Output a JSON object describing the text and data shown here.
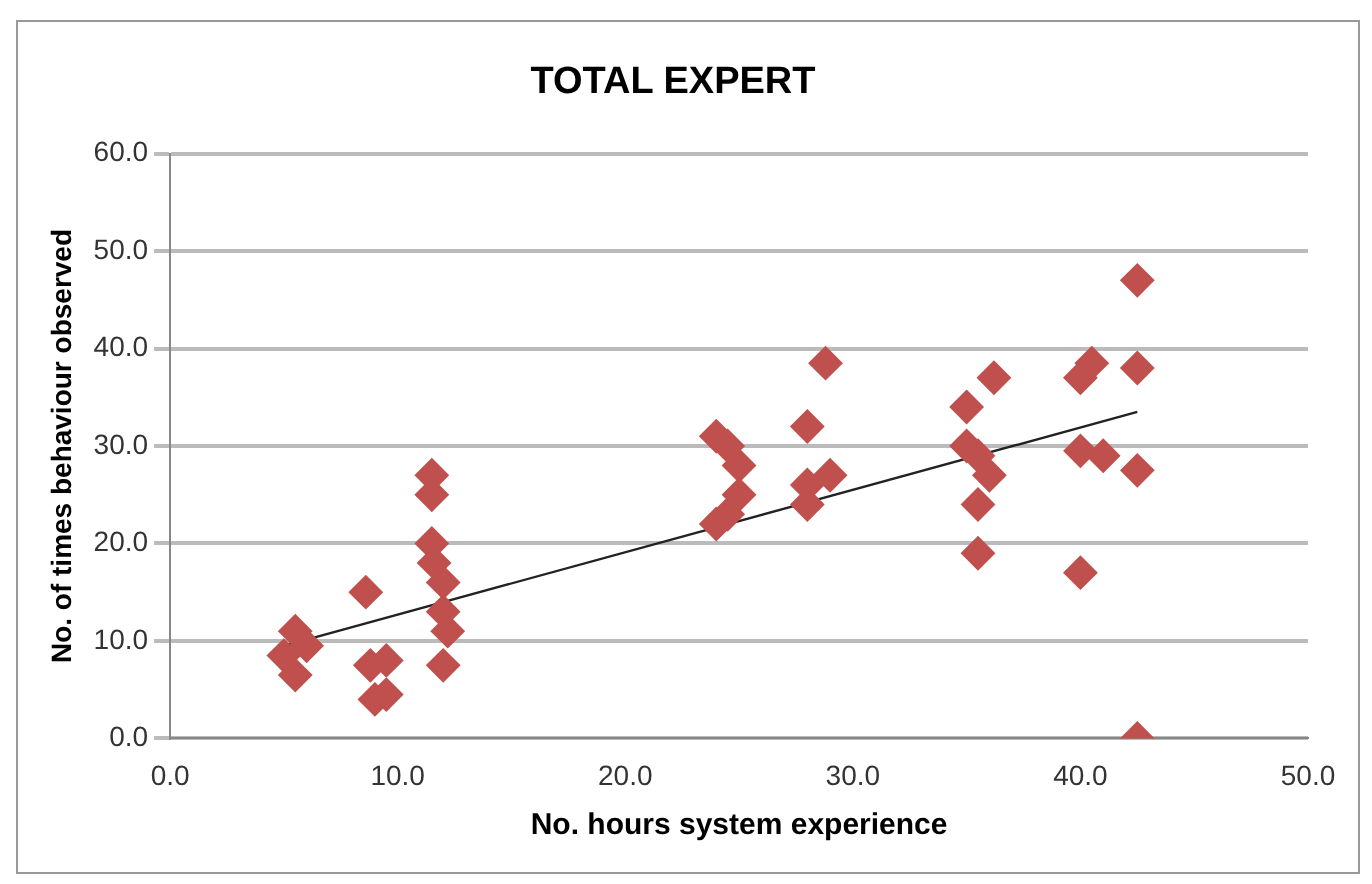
{
  "chart_data": {
    "type": "scatter",
    "title": "TOTAL EXPERT",
    "xlabel": "No. hours system experience",
    "ylabel": "No. of times behaviour observed",
    "xlim": [
      0,
      50
    ],
    "xticks": [
      {
        "value": 0,
        "label": "0.0"
      },
      {
        "value": 10,
        "label": "10.0"
      },
      {
        "value": 20,
        "label": "20.0"
      },
      {
        "value": 30,
        "label": "30.0"
      },
      {
        "value": 40,
        "label": "40.0"
      },
      {
        "value": 50,
        "label": "50.0"
      }
    ],
    "ylim": [
      0,
      60
    ],
    "yticks": [
      {
        "value": 0,
        "label": "0.0"
      },
      {
        "value": 10,
        "label": "10.0"
      },
      {
        "value": 20,
        "label": "20.0"
      },
      {
        "value": 30,
        "label": "30.0"
      },
      {
        "value": 40,
        "label": "40.0"
      },
      {
        "value": 50,
        "label": "50.0"
      },
      {
        "value": 60,
        "label": "60.0"
      }
    ],
    "grid": "y",
    "legend": false,
    "series": [
      {
        "marker": "diamond",
        "color": "#c0504d",
        "x": [
          5.5,
          5.5,
          5,
          6,
          8.6,
          8.8,
          9,
          9.5,
          9.5,
          11.5,
          11.5,
          11.5,
          11.6,
          12,
          12,
          12.2,
          12,
          24,
          24.5,
          24,
          24.5,
          25,
          25,
          28,
          28.8,
          28,
          28,
          29,
          35,
          35,
          35.5,
          35.5,
          36.2,
          35.5,
          36,
          40,
          40.5,
          40,
          41,
          40,
          42.5,
          42.5,
          42.5,
          42.5
        ],
        "values": [
          11,
          6.5,
          8.5,
          9.5,
          15,
          7.5,
          4,
          4.5,
          8,
          27,
          25,
          20,
          18,
          16,
          13,
          11,
          7.5,
          31,
          30,
          22,
          23,
          28,
          25,
          32,
          38.5,
          26,
          24,
          27,
          34,
          30,
          24,
          19,
          37,
          29,
          27,
          37,
          38.5,
          29.5,
          29,
          17,
          47,
          38,
          27.5,
          0
        ]
      },
      {
        "type": "line",
        "color": "#222222",
        "x": [
          5,
          42.5
        ],
        "values": [
          9.5,
          33.5
        ]
      }
    ]
  }
}
